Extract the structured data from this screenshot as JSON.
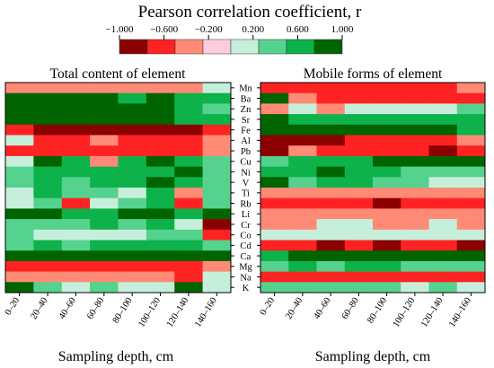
{
  "chart_data": {
    "type": "heatmap",
    "title": "Pearson correlation coefficient, r",
    "xlabel": "Sampling depth, cm",
    "colorbar": {
      "ticks": [
        "−1.000",
        "−0.600",
        "−0.200",
        "0.200",
        "0.600",
        "1.000"
      ],
      "colors": [
        "#8b0000",
        "#ff2222",
        "#ff8a75",
        "#ffccdd",
        "#c6efdb",
        "#55d28e",
        "#0db24a",
        "#006400"
      ]
    },
    "elements": [
      "Mn",
      "Ba",
      "Zn",
      "Sr",
      "Fe",
      "Al",
      "Pb",
      "Cu",
      "Ni",
      "V",
      "Ti",
      "Rb",
      "Li",
      "Cr",
      "Co",
      "Cd",
      "Ca",
      "Mg",
      "Na",
      "K"
    ],
    "depths": [
      "0–20",
      "20–40",
      "40–60",
      "60–80",
      "80–100",
      "100–120",
      "120–140",
      "140–160"
    ],
    "panels": [
      {
        "title": "Total content of element",
        "values": [
          [
            -0.45,
            -0.45,
            -0.45,
            -0.4,
            -0.4,
            -0.45,
            -0.5,
            0.05
          ],
          [
            0.95,
            0.75,
            0.75,
            0.75,
            0.7,
            0.75,
            0.7,
            0.6
          ],
          [
            0.8,
            0.75,
            0.75,
            0.95,
            0.85,
            0.75,
            0.7,
            0.45
          ],
          [
            0.8,
            0.75,
            0.75,
            0.75,
            0.85,
            0.75,
            0.7,
            0.5
          ],
          [
            -0.7,
            -0.9,
            -0.9,
            -0.9,
            -0.9,
            -0.9,
            -0.8,
            -0.7
          ],
          [
            0.15,
            -0.55,
            -0.55,
            -0.4,
            -0.55,
            -0.55,
            -0.55,
            -0.4
          ],
          [
            -0.6,
            -0.55,
            -0.55,
            -0.55,
            -0.55,
            -0.55,
            -0.6,
            -0.4
          ],
          [
            0.2,
            0.95,
            0.7,
            -0.4,
            0.7,
            0.75,
            0.7,
            0.35
          ],
          [
            0.45,
            0.7,
            0.65,
            0.6,
            0.65,
            0.7,
            0.75,
            0.4
          ],
          [
            0.4,
            0.7,
            0.45,
            0.7,
            0.7,
            0.75,
            0.7,
            0.3
          ],
          [
            0.0,
            0.7,
            0.45,
            0.4,
            0.05,
            0.7,
            -0.4,
            0.3
          ],
          [
            0.05,
            0.45,
            -0.55,
            0.15,
            0.45,
            0.7,
            -0.6,
            0.4
          ],
          [
            0.8,
            0.8,
            0.7,
            0.7,
            0.75,
            0.75,
            0.7,
            0.95
          ],
          [
            0.45,
            0.35,
            0.45,
            0.5,
            0.35,
            0.5,
            0.2,
            -0.85
          ],
          [
            0.45,
            0.05,
            0.2,
            0.05,
            0.2,
            0.4,
            0.45,
            -0.55
          ],
          [
            0.35,
            0.7,
            0.4,
            0.7,
            0.5,
            0.7,
            0.65,
            0.4
          ],
          [
            0.75,
            0.75,
            0.75,
            0.8,
            0.9,
            0.9,
            0.9,
            0.85
          ],
          [
            -0.55,
            -0.55,
            -0.55,
            -0.55,
            -0.55,
            -0.6,
            -0.65,
            -0.3
          ],
          [
            -0.45,
            -0.45,
            -0.4,
            -0.4,
            -0.45,
            -0.45,
            -0.7,
            0.0
          ],
          [
            0.75,
            0.45,
            0.05,
            0.45,
            0.15,
            0.15,
            0.75,
            0.0
          ]
        ]
      },
      {
        "title": "Mobile forms of element",
        "values": [
          [
            -0.55,
            -0.65,
            -0.6,
            -0.6,
            -0.6,
            -0.55,
            -0.55,
            -0.5
          ],
          [
            0.8,
            -0.5,
            -0.55,
            -0.55,
            -0.55,
            -0.6,
            -0.6,
            -0.55
          ],
          [
            -0.4,
            0.15,
            -0.35,
            0.15,
            0.05,
            0.15,
            0.2,
            0.3
          ],
          [
            0.75,
            0.7,
            0.7,
            0.7,
            0.7,
            0.7,
            0.7,
            0.6
          ],
          [
            0.75,
            0.75,
            0.75,
            0.75,
            0.75,
            0.75,
            0.75,
            0.6
          ],
          [
            -0.85,
            -0.8,
            -0.8,
            -0.7,
            -0.55,
            -0.55,
            -0.6,
            -0.4
          ],
          [
            -0.8,
            -0.4,
            -0.55,
            -0.55,
            -0.7,
            -0.7,
            -0.85,
            -0.7
          ],
          [
            0.4,
            0.7,
            0.7,
            0.7,
            0.9,
            0.8,
            0.9,
            0.8
          ],
          [
            0.7,
            0.7,
            0.8,
            0.7,
            0.7,
            0.45,
            0.3,
            0.45
          ],
          [
            0.75,
            0.45,
            0.7,
            0.7,
            0.45,
            0.3,
            0.2,
            0.2
          ],
          [
            -0.45,
            -0.4,
            -0.4,
            -0.4,
            -0.45,
            -0.45,
            -0.45,
            -0.4
          ],
          [
            -0.55,
            -0.55,
            -0.55,
            -0.55,
            -0.85,
            -0.7,
            -0.7,
            -0.55
          ],
          [
            -0.35,
            -0.3,
            -0.3,
            -0.3,
            -0.3,
            -0.3,
            -0.3,
            -0.3
          ],
          [
            -0.35,
            -0.3,
            0.0,
            0.05,
            -0.3,
            -0.3,
            0.05,
            -0.35
          ],
          [
            0.0,
            0.05,
            0.05,
            0.05,
            0.05,
            0.05,
            0.05,
            0.05
          ],
          [
            -0.55,
            -0.6,
            -0.85,
            -0.6,
            -0.85,
            -0.6,
            -0.7,
            -0.8
          ],
          [
            0.7,
            0.75,
            0.9,
            0.85,
            0.85,
            0.9,
            0.85,
            0.8
          ],
          [
            0.4,
            0.7,
            0.4,
            0.7,
            0.7,
            0.4,
            0.4,
            0.45
          ],
          [
            -0.6,
            -0.6,
            -0.6,
            -0.55,
            -0.65,
            -0.65,
            -0.55,
            -0.55
          ],
          [
            0.45,
            0.35,
            0.4,
            0.35,
            0.35,
            0.2,
            0.35,
            0.05
          ]
        ]
      }
    ]
  }
}
